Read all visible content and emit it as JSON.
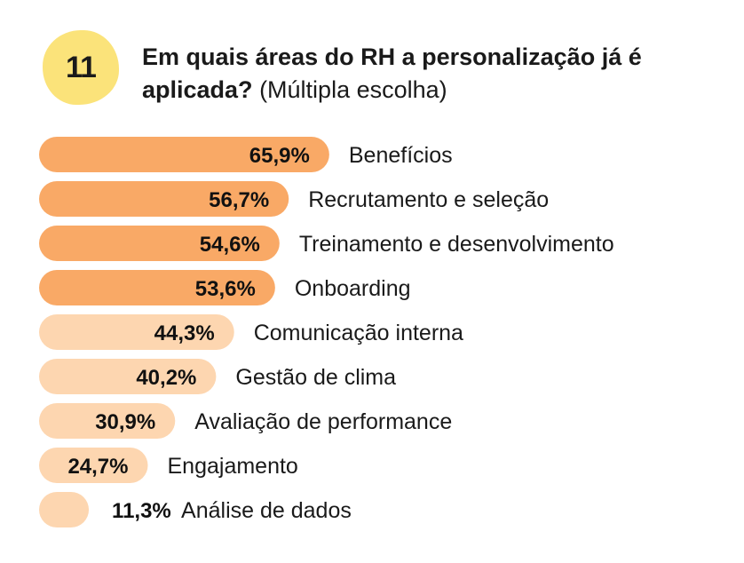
{
  "question": {
    "number": "11",
    "title_bold": "Em quais áreas do RH a personalização já é aplicada?",
    "title_note": "(Múltipla escolha)"
  },
  "colors": {
    "badge": "#fbe37a",
    "bar_strong": "#f9a966",
    "bar_light": "#fdd6b0"
  },
  "chart_data": {
    "type": "bar",
    "orientation": "horizontal",
    "categories": [
      "Benefícios",
      "Recrutamento e seleção",
      "Treinamento e desenvolvimento",
      "Onboarding",
      "Comunicação interna",
      "Gestão de clima",
      "Avaliação de performance",
      "Engajamento",
      "Análise de dados"
    ],
    "values": [
      65.9,
      56.7,
      54.6,
      53.6,
      44.3,
      40.2,
      30.9,
      24.7,
      11.3
    ],
    "value_labels": [
      "65,9%",
      "56,7%",
      "54,6%",
      "53,6%",
      "44,3%",
      "40,2%",
      "30,9%",
      "24,7%",
      "11,3%"
    ],
    "highlighted": [
      true,
      true,
      true,
      true,
      false,
      false,
      false,
      false,
      false
    ],
    "xlim": [
      0,
      100
    ],
    "grid": false,
    "legend": "none"
  }
}
